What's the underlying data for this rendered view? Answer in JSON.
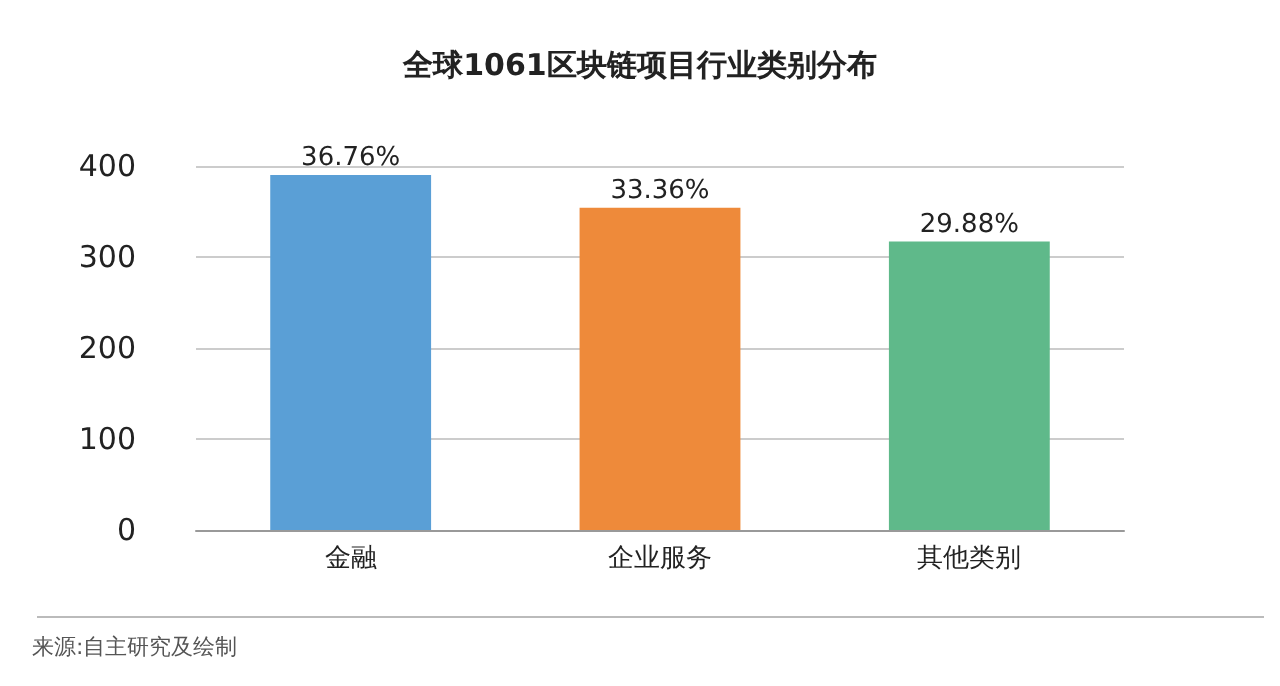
{
  "chart_data": {
    "type": "bar",
    "title": "全球1061区块链项目行业类别分布",
    "categories": [
      "金融",
      "企业服务",
      "其他类别"
    ],
    "values": [
      390,
      354,
      317
    ],
    "colors": [
      "#5a9fd6",
      "#ee8a3a",
      "#5fb98a"
    ],
    "ylim": [
      0,
      400
    ],
    "yticks": [
      0,
      100,
      200,
      300,
      400
    ],
    "grid": "y",
    "annotations": [
      {
        "text": "36.76%",
        "x": "金融",
        "y": 390
      },
      {
        "text": "33.36%",
        "x": "企业服务",
        "y": 354
      },
      {
        "text": "29.88%",
        "x": "其他类别",
        "y": 317
      },
      "来源:自主研究及绘制"
    ]
  }
}
